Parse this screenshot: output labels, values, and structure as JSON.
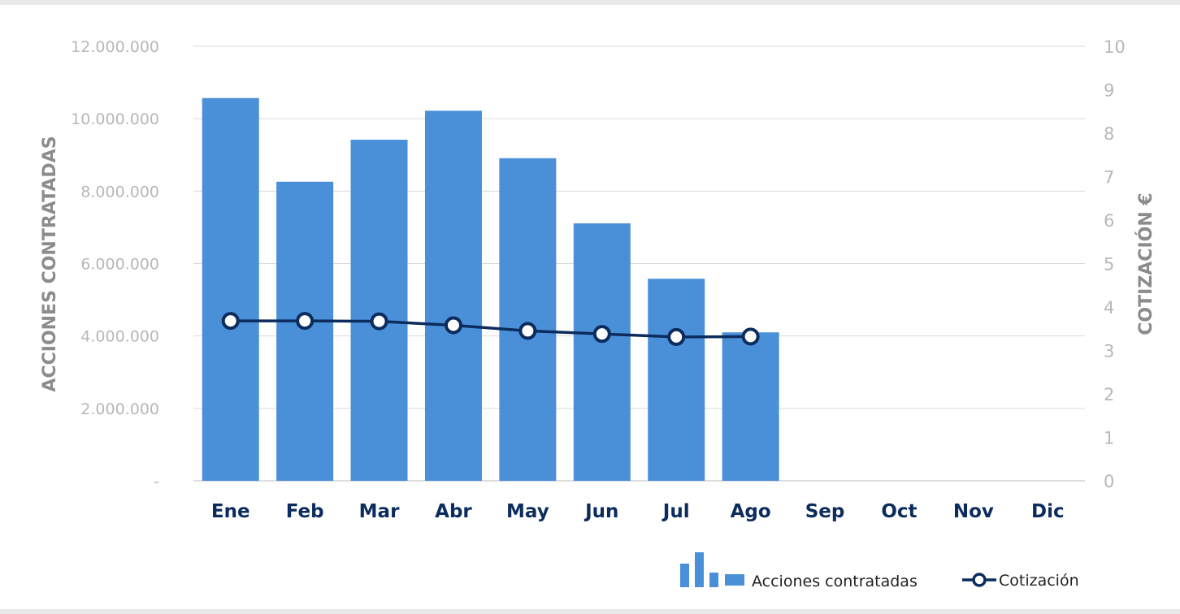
{
  "chart_data": {
    "type": "bar",
    "categories": [
      "Ene",
      "Feb",
      "Mar",
      "Abr",
      "May",
      "Jun",
      "Jul",
      "Ago",
      "Sep",
      "Oct",
      "Nov",
      "Dic"
    ],
    "series": [
      {
        "name": "Acciones contratadas",
        "type": "bar",
        "axis": "left",
        "color": "#4a90d9",
        "values": [
          10570000,
          8260000,
          9420000,
          10220000,
          8910000,
          7110000,
          5580000,
          4100000,
          null,
          null,
          null,
          null
        ]
      },
      {
        "name": "Cotización",
        "type": "line",
        "axis": "right",
        "color": "#0c2c5e",
        "values": [
          3.68,
          3.68,
          3.67,
          3.58,
          3.45,
          3.38,
          3.31,
          3.32,
          null,
          null,
          null,
          null
        ]
      }
    ],
    "ylabel": "ACCIONES CONTRATADAS",
    "y2label": "COTIZACIÓN €",
    "ylim": [
      0,
      12000000
    ],
    "y2lim": [
      0,
      10
    ],
    "yticks": [
      "-",
      "2.000.000",
      "4.000.000",
      "6.000.000",
      "8.000.000",
      "10.000.000",
      "12.000.000"
    ],
    "y2ticks": [
      "0",
      "1",
      "2",
      "3",
      "4",
      "5",
      "6",
      "7",
      "8",
      "9",
      "10"
    ],
    "grid": true,
    "legend_position": "bottom-right"
  }
}
